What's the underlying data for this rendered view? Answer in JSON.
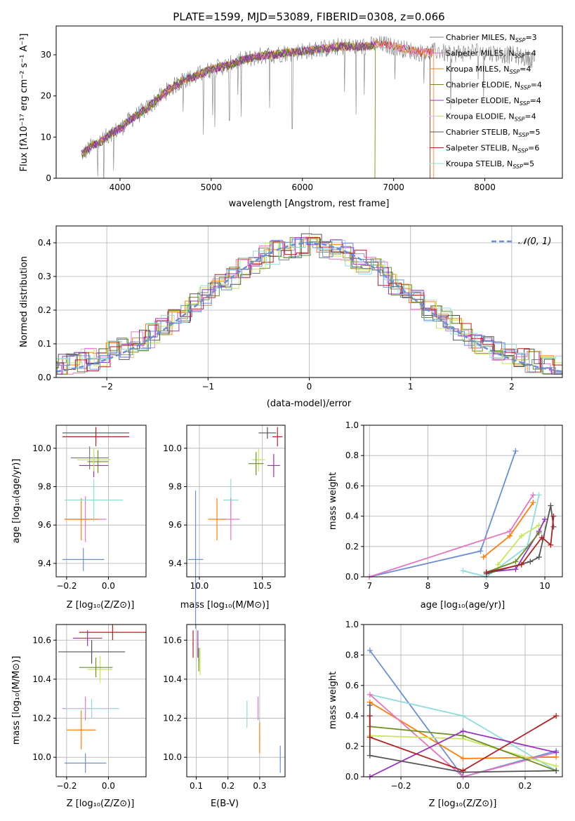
{
  "colors": {
    "chabrier_miles": "#7f7f7f",
    "salpeter_miles": "#e377c2",
    "kroupa_miles": "#ff7f0e",
    "chabrier_elodie": "#6b8e23",
    "salpeter_elodie": "#9b30c0",
    "kroupa_elodie": "#c8e65a",
    "chabrier_stelib": "#555555",
    "salpeter_stelib": "#b22222",
    "kroupa_stelib": "#8fdcdc",
    "gauss": "#6a8fd6"
  },
  "chart_data": [
    {
      "id": "spectrum",
      "type": "line",
      "title": "PLATE=1599, MJD=53089, FIBERID=0308, z=0.066",
      "xlabel": "wavelength [Angstrom, rest frame]",
      "ylabel": "Flux [fλ10⁻¹⁷ erg cm⁻² s⁻¹ A⁻¹]",
      "xlim": [
        3300,
        8850
      ],
      "ylim": [
        0,
        37
      ],
      "xticks": [
        4000,
        5000,
        6000,
        7000,
        8000
      ],
      "yticks": [
        0,
        10,
        20,
        30
      ],
      "grid": false,
      "legend_position": "right",
      "continuum": {
        "x": [
          3600,
          3700,
          3800,
          3900,
          4000,
          4100,
          4200,
          4300,
          4400,
          4500,
          4600,
          4700,
          4800,
          4900,
          5000,
          5100,
          5200,
          5300,
          5400,
          5500,
          5600,
          5700,
          5800,
          5900,
          6000,
          6100,
          6200,
          6300,
          6400,
          6500,
          6600,
          6700,
          6800,
          6900,
          7000,
          7100,
          7200,
          7300,
          7400,
          7500,
          7600,
          7700,
          7800,
          7900,
          8000,
          8100,
          8200,
          8300,
          8400,
          8500
        ],
        "y": [
          6,
          8,
          9,
          11,
          12,
          14,
          15.5,
          17,
          19,
          21,
          22.5,
          24,
          24.5,
          25.5,
          26.5,
          27,
          27.5,
          28.5,
          29,
          29.5,
          30,
          30,
          30.5,
          30.5,
          31,
          31,
          31.5,
          31.5,
          32,
          32,
          32,
          32,
          32.5,
          32.5,
          32,
          31.5,
          31,
          30.5,
          30.5,
          31,
          30,
          30.5,
          30.5,
          31,
          30.5,
          30.5,
          30,
          30,
          29.5,
          29
        ]
      },
      "series": [
        {
          "name": "Chabrier MILES, N_SSP=3",
          "legend": "Chabrier MILES, N",
          "sub": "SSP",
          "count": "=3",
          "color_key": "chabrier_miles"
        },
        {
          "name": "Salpeter MILES, N_SSP=4",
          "legend": "Salpeter MILES, N",
          "sub": "SSP",
          "count": "=4",
          "color_key": "salpeter_miles"
        },
        {
          "name": "Kroupa MILES, N_SSP=4",
          "legend": "Kroupa MILES, N",
          "sub": "SSP",
          "count": "=4",
          "color_key": "kroupa_miles"
        },
        {
          "name": "Chabrier ELODIE, N_SSP=4",
          "legend": "Chabrier ELODIE, N",
          "sub": "SSP",
          "count": "=4",
          "color_key": "chabrier_elodie"
        },
        {
          "name": "Salpeter ELODIE, N_SSP=4",
          "legend": "Salpeter ELODIE, N",
          "sub": "SSP",
          "count": "=4",
          "color_key": "salpeter_elodie"
        },
        {
          "name": "Kroupa ELODIE, N_SSP=4",
          "legend": "Kroupa ELODIE, N",
          "sub": "SSP",
          "count": "=4",
          "color_key": "kroupa_elodie"
        },
        {
          "name": "Chabrier STELIB, N_SSP=5",
          "legend": "Chabrier STELIB, N",
          "sub": "SSP",
          "count": "=5",
          "color_key": "chabrier_stelib"
        },
        {
          "name": "Salpeter STELIB, N_SSP=6",
          "legend": "Salpeter STELIB, N",
          "sub": "SSP",
          "count": "=6",
          "color_key": "salpeter_stelib"
        },
        {
          "name": "Kroupa STELIB, N_SSP=5",
          "legend": "Kroupa STELIB, N",
          "sub": "SSP",
          "count": "=5",
          "color_key": "kroupa_stelib"
        }
      ]
    },
    {
      "id": "residuals",
      "type": "bar",
      "xlabel": "(data-model)/error",
      "ylabel": "Normed distribution",
      "xlim": [
        -2.5,
        2.5
      ],
      "ylim": [
        0,
        0.45
      ],
      "xticks": [
        -2,
        -1,
        0,
        1,
        2
      ],
      "yticks": [
        0.0,
        0.1,
        0.2,
        0.3,
        0.4
      ],
      "grid": true,
      "legend_position": "top-right",
      "legend": [
        "𝒩(0, 1)"
      ]
    },
    {
      "id": "age_vs_Z",
      "type": "scatter",
      "xlabel": "Z [log₁₀(Z/Z⊙)]",
      "ylabel": "age  [log₁₀(age/yr)]",
      "xlim": [
        -0.25,
        0.18
      ],
      "ylim": [
        9.33,
        10.12
      ],
      "xticks": [
        -0.2,
        0.0
      ],
      "yticks": [
        9.4,
        9.6,
        9.8,
        10.0
      ],
      "grid": true,
      "points": [
        {
          "x": -0.09,
          "xerr": 0.09,
          "y": 9.95,
          "yerr": 0.06,
          "color_key": "chabrier_miles"
        },
        {
          "x": -0.11,
          "xerr": 0.1,
          "y": 9.63,
          "yerr": 0.12,
          "color_key": "salpeter_miles"
        },
        {
          "x": -0.13,
          "xerr": 0.08,
          "y": 9.63,
          "yerr": 0.11,
          "color_key": "kroupa_miles"
        },
        {
          "x": -0.05,
          "xerr": 0.05,
          "y": 9.93,
          "yerr": 0.06,
          "color_key": "chabrier_elodie"
        },
        {
          "x": -0.07,
          "xerr": 0.07,
          "y": 9.91,
          "yerr": 0.06,
          "color_key": "salpeter_elodie"
        },
        {
          "x": -0.07,
          "xerr": 0.08,
          "y": 9.94,
          "yerr": 0.06,
          "color_key": "kroupa_elodie"
        },
        {
          "x": -0.06,
          "xerr": 0.16,
          "y": 10.08,
          "yerr": 0.03,
          "color_key": "chabrier_stelib"
        },
        {
          "x": -0.06,
          "xerr": 0.16,
          "y": 10.06,
          "yerr": 0.05,
          "color_key": "salpeter_stelib"
        },
        {
          "x": -0.07,
          "xerr": 0.14,
          "y": 9.73,
          "yerr": 0.11,
          "color_key": "kroupa_stelib"
        },
        {
          "x": -0.12,
          "xerr": 0.1,
          "y": 9.42,
          "yerr": 0.06,
          "color_key": "gauss"
        }
      ]
    },
    {
      "id": "age_vs_mass",
      "type": "scatter",
      "xlabel": "mass [log₁₀(M/M⊙)]",
      "ylabel": "",
      "xlim": [
        9.9,
        10.68
      ],
      "ylim": [
        9.33,
        10.12
      ],
      "xticks": [
        10.0,
        10.5
      ],
      "yticks": [
        9.4,
        9.6,
        9.8,
        10.0
      ],
      "grid": true,
      "points": [
        {
          "x": 10.54,
          "xerr": 0.07,
          "y": 10.08,
          "yerr": 0.03,
          "color_key": "chabrier_stelib"
        },
        {
          "x": 10.62,
          "xerr": 0.04,
          "y": 10.06,
          "yerr": 0.05,
          "color_key": "salpeter_stelib"
        },
        {
          "x": 10.59,
          "xerr": 0.05,
          "y": 9.91,
          "yerr": 0.06,
          "color_key": "salpeter_elodie"
        },
        {
          "x": 10.47,
          "xerr": 0.05,
          "y": 9.94,
          "yerr": 0.06,
          "color_key": "kroupa_elodie"
        },
        {
          "x": 10.45,
          "xerr": 0.06,
          "y": 9.92,
          "yerr": 0.06,
          "color_key": "chabrier_elodie"
        },
        {
          "x": 10.25,
          "xerr": 0.06,
          "y": 9.73,
          "yerr": 0.11,
          "color_key": "kroupa_stelib"
        },
        {
          "x": 10.25,
          "xerr": 0.07,
          "y": 9.63,
          "yerr": 0.11,
          "color_key": "salpeter_miles"
        },
        {
          "x": 10.14,
          "xerr": 0.07,
          "y": 9.63,
          "yerr": 0.11,
          "color_key": "kroupa_miles"
        },
        {
          "x": 9.97,
          "xerr": 0.06,
          "y": 9.42,
          "yerr": 0.36,
          "color_key": "gauss"
        }
      ]
    },
    {
      "id": "weight_vs_age",
      "type": "line",
      "xlabel": "age  [log₁₀(age/yr)]",
      "ylabel": "mass weight",
      "xlim": [
        6.9,
        10.3
      ],
      "ylim": [
        0,
        1
      ],
      "xticks": [
        7,
        8,
        9,
        10
      ],
      "yticks": [
        0.0,
        0.2,
        0.4,
        0.6,
        0.8,
        1.0
      ],
      "grid": true,
      "series": [
        {
          "color_key": "gauss",
          "x": [
            7.0,
            8.9,
            9.5
          ],
          "y": [
            0.0,
            0.17,
            0.83
          ]
        },
        {
          "color_key": "salpeter_miles",
          "x": [
            7.0,
            9.4,
            9.8
          ],
          "y": [
            0.0,
            0.3,
            0.54
          ]
        },
        {
          "color_key": "kroupa_miles",
          "x": [
            8.95,
            9.4,
            9.8
          ],
          "y": [
            0.13,
            0.27,
            0.49
          ]
        },
        {
          "color_key": "kroupa_stelib",
          "x": [
            8.6,
            9.0,
            9.7,
            9.9
          ],
          "y": [
            0.04,
            0.0,
            0.2,
            0.54
          ]
        },
        {
          "color_key": "kroupa_elodie",
          "x": [
            9.2,
            9.6,
            9.9
          ],
          "y": [
            0.08,
            0.27,
            0.34
          ]
        },
        {
          "color_key": "salpeter_elodie",
          "x": [
            9.0,
            9.5,
            9.9,
            10.0
          ],
          "y": [
            0.03,
            0.05,
            0.3,
            0.38
          ]
        },
        {
          "color_key": "chabrier_elodie",
          "x": [
            9.0,
            9.5,
            9.9
          ],
          "y": [
            0.03,
            0.1,
            0.29
          ]
        },
        {
          "color_key": "chabrier_stelib",
          "x": [
            9.0,
            9.75,
            9.9,
            10.1,
            10.15
          ],
          "y": [
            0.02,
            0.1,
            0.13,
            0.47,
            0.33
          ]
        },
        {
          "color_key": "salpeter_stelib",
          "x": [
            9.0,
            9.6,
            9.95,
            10.1,
            10.15
          ],
          "y": [
            0.03,
            0.08,
            0.26,
            0.21,
            0.4
          ]
        }
      ]
    },
    {
      "id": "mass_vs_Z",
      "type": "scatter",
      "xlabel": "Z [log₁₀(Z/Z⊙)]",
      "ylabel": "mass [log₁₀(M/M⊙)]",
      "xlim": [
        -0.25,
        0.18
      ],
      "ylim": [
        9.9,
        10.68
      ],
      "xticks": [
        -0.2,
        0.0
      ],
      "yticks": [
        10.0,
        10.2,
        10.4,
        10.6
      ],
      "grid": true,
      "points": [
        {
          "x": 0.02,
          "xerr": 0.16,
          "y": 10.64,
          "yerr": 0.04,
          "color_key": "salpeter_stelib"
        },
        {
          "x": -0.1,
          "xerr": 0.07,
          "y": 10.61,
          "yerr": 0.04,
          "color_key": "salpeter_elodie"
        },
        {
          "x": -0.08,
          "xerr": 0.16,
          "y": 10.54,
          "yerr": 0.06,
          "color_key": "chabrier_stelib"
        },
        {
          "x": -0.04,
          "xerr": 0.06,
          "y": 10.45,
          "yerr": 0.07,
          "color_key": "kroupa_elodie"
        },
        {
          "x": -0.06,
          "xerr": 0.08,
          "y": 10.46,
          "yerr": 0.05,
          "color_key": "chabrier_elodie"
        },
        {
          "x": -0.11,
          "xerr": 0.11,
          "y": 10.25,
          "yerr": 0.06,
          "color_key": "salpeter_miles"
        },
        {
          "x": -0.08,
          "xerr": 0.13,
          "y": 10.25,
          "yerr": 0.05,
          "color_key": "kroupa_stelib"
        },
        {
          "x": -0.13,
          "xerr": 0.07,
          "y": 10.14,
          "yerr": 0.1,
          "color_key": "kroupa_miles"
        },
        {
          "x": -0.11,
          "xerr": 0.1,
          "y": 9.97,
          "yerr": 0.05,
          "color_key": "gauss"
        }
      ]
    },
    {
      "id": "mass_vs_ebv",
      "type": "scatter",
      "xlabel": "E(B-V)",
      "ylabel": "",
      "xlim": [
        0.07,
        0.38
      ],
      "ylim": [
        9.9,
        10.68
      ],
      "xticks": [
        0.1,
        0.2,
        0.3
      ],
      "yticks": [
        10.0,
        10.2,
        10.4,
        10.6
      ],
      "grid": true,
      "points": [
        {
          "x": 0.09,
          "xerr": 0,
          "y": 10.58,
          "yerr": 0.07,
          "color_key": "salpeter_stelib"
        },
        {
          "x": 0.105,
          "xerr": 0,
          "y": 10.58,
          "yerr": 0.07,
          "color_key": "salpeter_elodie"
        },
        {
          "x": 0.108,
          "xerr": 0,
          "y": 10.5,
          "yerr": 0.06,
          "color_key": "chabrier_elodie"
        },
        {
          "x": 0.112,
          "xerr": 0,
          "y": 10.49,
          "yerr": 0.07,
          "color_key": "kroupa_elodie"
        },
        {
          "x": 0.26,
          "xerr": 0,
          "y": 10.22,
          "yerr": 0.07,
          "color_key": "kroupa_stelib"
        },
        {
          "x": 0.295,
          "xerr": 0,
          "y": 10.25,
          "yerr": 0.06,
          "color_key": "salpeter_miles"
        },
        {
          "x": 0.3,
          "xerr": 0,
          "y": 10.1,
          "yerr": 0.08,
          "color_key": "kroupa_miles"
        },
        {
          "x": 0.365,
          "xerr": 0,
          "y": 9.99,
          "yerr": 0.07,
          "color_key": "gauss"
        }
      ]
    },
    {
      "id": "weight_vs_Z",
      "type": "line",
      "xlabel": "Z [log₁₀(Z/Z⊙)]",
      "ylabel": "mass weight",
      "xlim": [
        -0.32,
        0.32
      ],
      "ylim": [
        0,
        1
      ],
      "xticks": [
        -0.2,
        0.0,
        0.2
      ],
      "yticks": [
        0.0,
        0.2,
        0.4,
        0.6,
        0.8,
        1.0
      ],
      "grid": true,
      "series": [
        {
          "color_key": "gauss",
          "x": [
            -0.3,
            0.0,
            0.3
          ],
          "y": [
            0.83,
            0.0,
            0.17
          ]
        },
        {
          "color_key": "kroupa_stelib",
          "x": [
            -0.3,
            0.0,
            0.3
          ],
          "y": [
            0.54,
            0.4,
            0.04
          ]
        },
        {
          "color_key": "kroupa_miles",
          "x": [
            -0.3,
            0.0,
            0.3
          ],
          "y": [
            0.49,
            0.12,
            0.13
          ]
        },
        {
          "color_key": "salpeter_miles",
          "x": [
            -0.3,
            0.0,
            0.3
          ],
          "y": [
            0.54,
            0.0,
            0.16
          ]
        },
        {
          "color_key": "kroupa_elodie",
          "x": [
            -0.3,
            0.0,
            0.3
          ],
          "y": [
            0.27,
            0.25,
            0.07
          ]
        },
        {
          "color_key": "chabrier_elodie",
          "x": [
            -0.3,
            0.0,
            0.3
          ],
          "y": [
            0.33,
            0.27,
            0.04
          ]
        },
        {
          "color_key": "salpeter_elodie",
          "x": [
            -0.3,
            0.0,
            0.3
          ],
          "y": [
            0.0,
            0.3,
            0.16
          ]
        },
        {
          "color_key": "chabrier_stelib",
          "x": [
            -0.3,
            -0.3,
            0.0,
            0.3
          ],
          "y": [
            0.47,
            0.14,
            0.03,
            0.04
          ]
        },
        {
          "color_key": "salpeter_stelib",
          "x": [
            -0.3,
            -0.3,
            0.0,
            0.3
          ],
          "y": [
            0.4,
            0.26,
            0.04,
            0.4
          ]
        }
      ]
    }
  ]
}
